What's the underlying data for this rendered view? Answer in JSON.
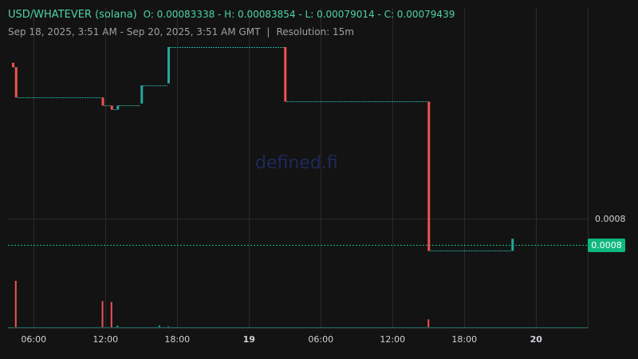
{
  "header": {
    "symbol": "USD/WHATEVER (solana)",
    "ohlc": "O: 0.00083338 - H: 0.00083854 - L: 0.00079014 - C: 0.00079439",
    "range": "Sep 18, 2025, 3:51 AM - Sep 20, 2025, 3:51 AM GMT",
    "separator": "|",
    "resolution": "Resolution: 15m"
  },
  "watermark": "defined.fi",
  "price_axis": {
    "label": "0.0008",
    "last_price_tag": "0.0008"
  },
  "colors": {
    "background": "#131313",
    "up": "#26a69a",
    "down": "#ef5350",
    "last_price": "#10b77f",
    "grid": "#2a2a2a"
  },
  "chart_data": {
    "type": "candlestick",
    "x_tick_labels": [
      "06:00",
      "12:00",
      "18:00",
      "19",
      "06:00",
      "12:00",
      "18:00",
      "20"
    ],
    "y_tick_labels": [
      "0.0008"
    ],
    "last_price": "0.0008",
    "candles": [
      {
        "time": "Sep 18 04:15",
        "open": 0.0008386,
        "close": 0.0008375,
        "dir": "down"
      },
      {
        "time": "Sep 18 04:30",
        "open": 0.0008375,
        "close": 0.00083,
        "dir": "down"
      },
      {
        "time": "Sep 18 11:45",
        "open": 0.00083,
        "close": 0.000828,
        "dir": "down"
      },
      {
        "time": "Sep 18 12:30",
        "open": 0.000828,
        "close": 0.000827,
        "dir": "down"
      },
      {
        "time": "Sep 18 13:00",
        "open": 0.000827,
        "close": 0.000828,
        "dir": "up"
      },
      {
        "time": "Sep 18 15:00",
        "open": 0.0008285,
        "close": 0.000833,
        "dir": "up"
      },
      {
        "time": "Sep 18 17:15",
        "open": 0.0008335,
        "close": 0.0008425,
        "dir": "up"
      },
      {
        "time": "Sep 19 03:00",
        "open": 0.0008425,
        "close": 0.000829,
        "dir": "down"
      },
      {
        "time": "Sep 19 15:00",
        "open": 0.000829,
        "close": 0.000792,
        "dir": "down"
      },
      {
        "time": "Sep 19 22:00",
        "open": 0.000792,
        "close": 0.000795,
        "dir": "up"
      }
    ],
    "volume_spikes": [
      {
        "time": "Sep 18 04:30",
        "relative": 1.0,
        "dir": "down"
      },
      {
        "time": "Sep 18 11:45",
        "relative": 0.57,
        "dir": "down"
      },
      {
        "time": "Sep 18 12:30",
        "relative": 0.55,
        "dir": "down"
      },
      {
        "time": "Sep 18 13:00",
        "relative": 0.05,
        "dir": "up"
      },
      {
        "time": "Sep 18 16:30",
        "relative": 0.05,
        "dir": "up"
      },
      {
        "time": "Sep 18 17:15",
        "relative": 0.03,
        "dir": "up"
      },
      {
        "time": "Sep 19 15:00",
        "relative": 0.18,
        "dir": "down"
      }
    ],
    "grid": true
  }
}
